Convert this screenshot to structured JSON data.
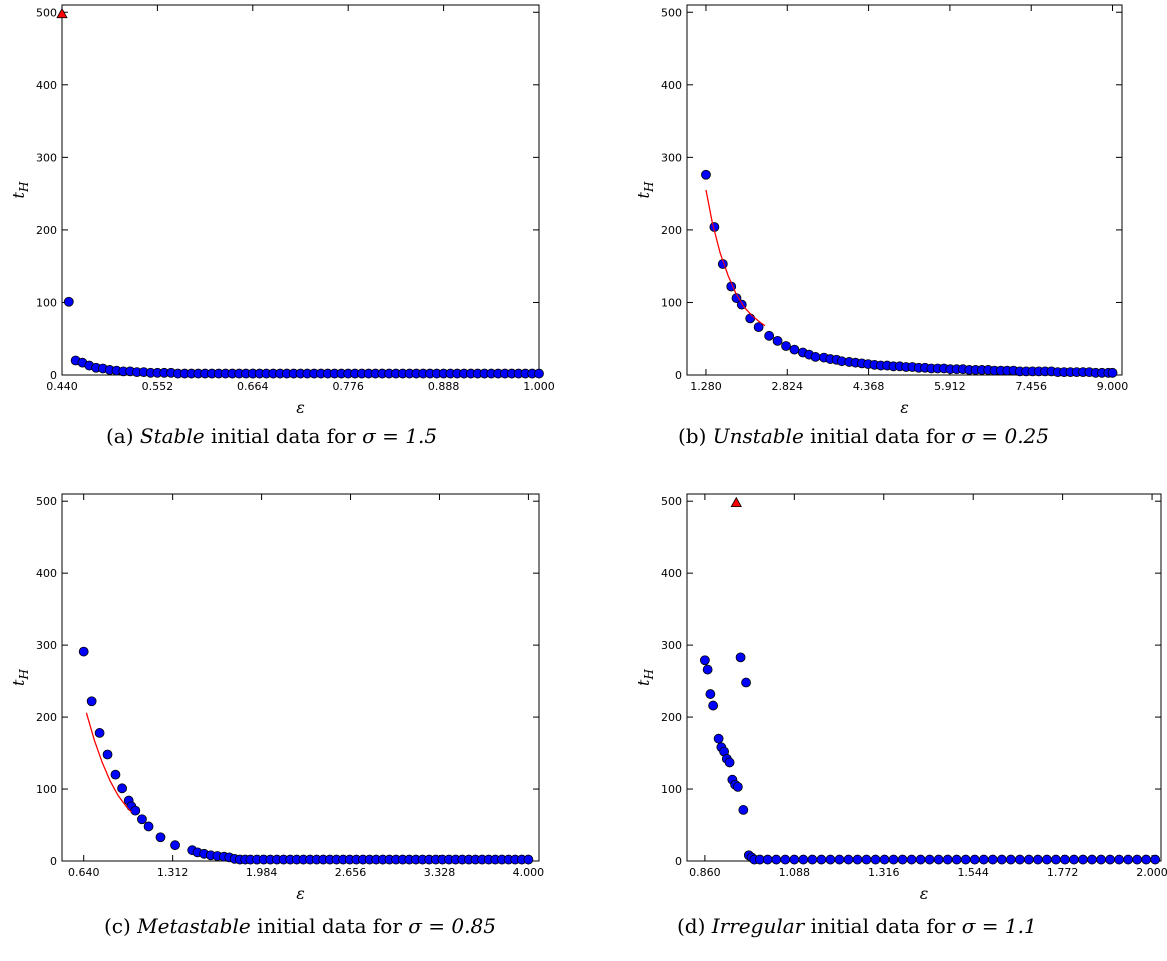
{
  "chart_data": [
    {
      "type": "scatter",
      "panel": "a",
      "caption": {
        "tag": "(a)",
        "kind": "Stable",
        "rest": "initial data for",
        "param": "σ = 1.5"
      },
      "xlabel": "ε",
      "ylabel": "t_H",
      "xlim": [
        0.44,
        1.0
      ],
      "ylim": [
        0,
        510
      ],
      "xticks": [
        0.44,
        0.552,
        0.664,
        0.776,
        0.888,
        1.0
      ],
      "xtick_labels": [
        "0.440",
        "0.552",
        "0.664",
        "0.776",
        "0.888",
        "1.000"
      ],
      "yticks": [
        0,
        100,
        200,
        300,
        400,
        500
      ],
      "ytick_labels": [
        "0",
        "100",
        "200",
        "300",
        "400",
        "500"
      ],
      "series": [
        {
          "marker": "circle",
          "color": "#0000ff",
          "x": [
            0.448,
            0.456,
            0.464,
            0.472,
            0.48,
            0.488,
            0.496,
            0.504,
            0.512,
            0.52,
            0.528,
            0.536,
            0.544,
            0.552,
            0.56,
            0.568,
            0.576,
            0.584,
            0.592,
            0.6,
            0.608,
            0.616,
            0.624,
            0.632,
            0.64,
            0.648,
            0.656,
            0.664,
            0.672,
            0.68,
            0.688,
            0.696,
            0.704,
            0.712,
            0.72,
            0.728,
            0.736,
            0.744,
            0.752,
            0.76,
            0.768,
            0.776,
            0.784,
            0.792,
            0.8,
            0.808,
            0.816,
            0.824,
            0.832,
            0.84,
            0.848,
            0.856,
            0.864,
            0.872,
            0.88,
            0.888,
            0.896,
            0.904,
            0.912,
            0.92,
            0.928,
            0.936,
            0.944,
            0.952,
            0.96,
            0.968,
            0.976,
            0.984,
            0.992,
            1.0
          ],
          "y": [
            101,
            20,
            17,
            13,
            10,
            9,
            7,
            6,
            5,
            5,
            4,
            4,
            3,
            3,
            3,
            3,
            2,
            2,
            2,
            2,
            2,
            2,
            2,
            2,
            2,
            2,
            2,
            2,
            2,
            2,
            2,
            2,
            2,
            2,
            2,
            2,
            2,
            2,
            2,
            2,
            2,
            2,
            2,
            2,
            2,
            2,
            2,
            2,
            2,
            2,
            2,
            2,
            2,
            2,
            2,
            2,
            2,
            2,
            2,
            2,
            2,
            2,
            2,
            2,
            2,
            2,
            2,
            2,
            2,
            2
          ]
        },
        {
          "marker": "triangle",
          "color": "#ff0000",
          "x": [
            0.44
          ],
          "y": [
            498
          ]
        }
      ]
    },
    {
      "type": "scatter",
      "panel": "b",
      "caption": {
        "tag": "(b)",
        "kind": "Unstable",
        "rest": "initial data for",
        "param": "σ = 0.25"
      },
      "xlabel": "ε",
      "ylabel": "t_H",
      "xlim": [
        0.92,
        9.18
      ],
      "ylim": [
        0,
        510
      ],
      "xticks": [
        1.28,
        2.824,
        4.368,
        5.912,
        7.456,
        9.0
      ],
      "xtick_labels": [
        "1.280",
        "2.824",
        "4.368",
        "5.912",
        "7.456",
        "9.000"
      ],
      "yticks": [
        0,
        100,
        200,
        300,
        400,
        500
      ],
      "ytick_labels": [
        "0",
        "100",
        "200",
        "300",
        "400",
        "500"
      ],
      "series": [
        {
          "marker": "circle",
          "color": "#0000ff",
          "x": [
            1.28,
            1.44,
            1.6,
            1.76,
            1.86,
            1.96,
            2.12,
            2.28,
            2.48,
            2.64,
            2.8,
            2.96,
            3.12,
            3.24,
            3.36,
            3.52,
            3.64,
            3.76,
            3.86,
            4.0,
            4.12,
            4.24,
            4.36,
            4.48,
            4.6,
            4.72,
            4.84,
            4.96,
            5.08,
            5.2,
            5.32,
            5.44,
            5.56,
            5.68,
            5.8,
            5.92,
            6.04,
            6.16,
            6.28,
            6.4,
            6.52,
            6.64,
            6.76,
            6.88,
            7.0,
            7.12,
            7.24,
            7.36,
            7.48,
            7.6,
            7.72,
            7.84,
            7.96,
            8.08,
            8.2,
            8.32,
            8.44,
            8.56,
            8.68,
            8.8,
            8.92,
            9.0
          ],
          "y": [
            276,
            204,
            153,
            122,
            106,
            97,
            78,
            66,
            54,
            47,
            40,
            35,
            31,
            28,
            25,
            24,
            22,
            21,
            19,
            18,
            17,
            16,
            15,
            14,
            13,
            13,
            12,
            12,
            11,
            11,
            10,
            10,
            9,
            9,
            9,
            8,
            8,
            8,
            7,
            7,
            7,
            7,
            6,
            6,
            6,
            6,
            5,
            5,
            5,
            5,
            5,
            5,
            4,
            4,
            4,
            4,
            4,
            4,
            3,
            3,
            3,
            3
          ]
        },
        {
          "marker": "line",
          "color": "#ff0000",
          "x": [
            1.28,
            1.4,
            1.55,
            1.7,
            1.85,
            2.0,
            2.15,
            2.3,
            2.4
          ],
          "y": [
            255,
            210,
            168,
            137,
            112,
            94,
            82,
            73,
            68
          ]
        }
      ]
    },
    {
      "type": "scatter",
      "panel": "c",
      "caption": {
        "tag": "(c)",
        "kind": "Metastable",
        "rest": "initial data for",
        "param": "σ = 0.85"
      },
      "xlabel": "ε",
      "ylabel": "t_H",
      "xlim": [
        0.476,
        4.08
      ],
      "ylim": [
        0,
        510
      ],
      "xticks": [
        0.64,
        1.312,
        1.984,
        2.656,
        3.328,
        4.0
      ],
      "xtick_labels": [
        "0.640",
        "1.312",
        "1.984",
        "2.656",
        "3.328",
        "4.000"
      ],
      "yticks": [
        0,
        100,
        200,
        300,
        400,
        500
      ],
      "ytick_labels": [
        "0",
        "100",
        "200",
        "300",
        "400",
        "500"
      ],
      "series": [
        {
          "marker": "circle",
          "color": "#0000ff",
          "x": [
            0.64,
            0.7,
            0.76,
            0.82,
            0.88,
            0.93,
            0.98,
            1.0,
            1.03,
            1.08,
            1.13,
            1.22,
            1.33,
            1.46,
            1.5,
            1.55,
            1.6,
            1.65,
            1.7,
            1.74,
            1.78,
            1.82,
            1.86,
            1.9,
            1.95,
            2.0,
            2.05,
            2.1,
            2.15,
            2.2,
            2.25,
            2.3,
            2.35,
            2.4,
            2.45,
            2.5,
            2.55,
            2.6,
            2.65,
            2.7,
            2.75,
            2.8,
            2.85,
            2.9,
            2.95,
            3.0,
            3.05,
            3.1,
            3.15,
            3.2,
            3.25,
            3.3,
            3.35,
            3.4,
            3.45,
            3.5,
            3.55,
            3.6,
            3.65,
            3.7,
            3.75,
            3.8,
            3.85,
            3.9,
            3.95,
            4.0
          ],
          "y": [
            291,
            222,
            178,
            148,
            120,
            101,
            84,
            76,
            70,
            58,
            48,
            33,
            22,
            15,
            12,
            10,
            8,
            7,
            6,
            5,
            3,
            2,
            2,
            2,
            2,
            2,
            2,
            2,
            2,
            2,
            2,
            2,
            2,
            2,
            2,
            2,
            2,
            2,
            2,
            2,
            2,
            2,
            2,
            2,
            2,
            2,
            2,
            2,
            2,
            2,
            2,
            2,
            2,
            2,
            2,
            2,
            2,
            2,
            2,
            2,
            2,
            2,
            2,
            2,
            2,
            2
          ]
        },
        {
          "marker": "line",
          "color": "#ff0000",
          "x": [
            0.66,
            0.72,
            0.78,
            0.84,
            0.9,
            0.96,
            1.0
          ],
          "y": [
            206,
            168,
            137,
            111,
            91,
            76,
            68
          ]
        }
      ]
    },
    {
      "type": "scatter",
      "panel": "d",
      "caption": {
        "tag": "(d)",
        "kind": "Irregular",
        "rest": "initial data for",
        "param": "σ = 1.1"
      },
      "xlabel": "ε",
      "ylabel": "t_H",
      "xlim": [
        0.8144,
        2.0228
      ],
      "ylim": [
        0,
        510
      ],
      "xticks": [
        0.86,
        1.088,
        1.316,
        1.544,
        1.772,
        2.0
      ],
      "xtick_labels": [
        "0.860",
        "1.088",
        "1.316",
        "1.544",
        "1.772",
        "2.000"
      ],
      "yticks": [
        0,
        100,
        200,
        300,
        400,
        500
      ],
      "ytick_labels": [
        "0",
        "100",
        "200",
        "300",
        "400",
        "500"
      ],
      "series": [
        {
          "marker": "circle",
          "color": "#0000ff",
          "x": [
            0.86,
            0.867,
            0.874,
            0.881,
            0.895,
            0.902,
            0.909,
            0.916,
            0.923,
            0.93,
            0.937,
            0.944,
            0.951,
            0.958,
            0.965,
            0.972,
            0.979,
            0.986,
            1.0,
            1.02,
            1.042,
            1.065,
            1.088,
            1.111,
            1.134,
            1.157,
            1.18,
            1.203,
            1.226,
            1.249,
            1.272,
            1.295,
            1.318,
            1.341,
            1.364,
            1.387,
            1.41,
            1.433,
            1.456,
            1.479,
            1.502,
            1.525,
            1.548,
            1.571,
            1.594,
            1.617,
            1.64,
            1.663,
            1.686,
            1.709,
            1.732,
            1.755,
            1.778,
            1.801,
            1.824,
            1.847,
            1.87,
            1.893,
            1.916,
            1.939,
            1.962,
            1.985,
            2.008
          ],
          "y": [
            279,
            266,
            232,
            216,
            170,
            158,
            152,
            142,
            137,
            113,
            106,
            103,
            283,
            71,
            248,
            8,
            5,
            2,
            2,
            2,
            2,
            2,
            2,
            2,
            2,
            2,
            2,
            2,
            2,
            2,
            2,
            2,
            2,
            2,
            2,
            2,
            2,
            2,
            2,
            2,
            2,
            2,
            2,
            2,
            2,
            2,
            2,
            2,
            2,
            2,
            2,
            2,
            2,
            2,
            2,
            2,
            2,
            2,
            2,
            2,
            2,
            2,
            2
          ]
        },
        {
          "marker": "triangle",
          "color": "#ff0000",
          "x": [
            0.94
          ],
          "y": [
            498
          ]
        }
      ]
    }
  ]
}
